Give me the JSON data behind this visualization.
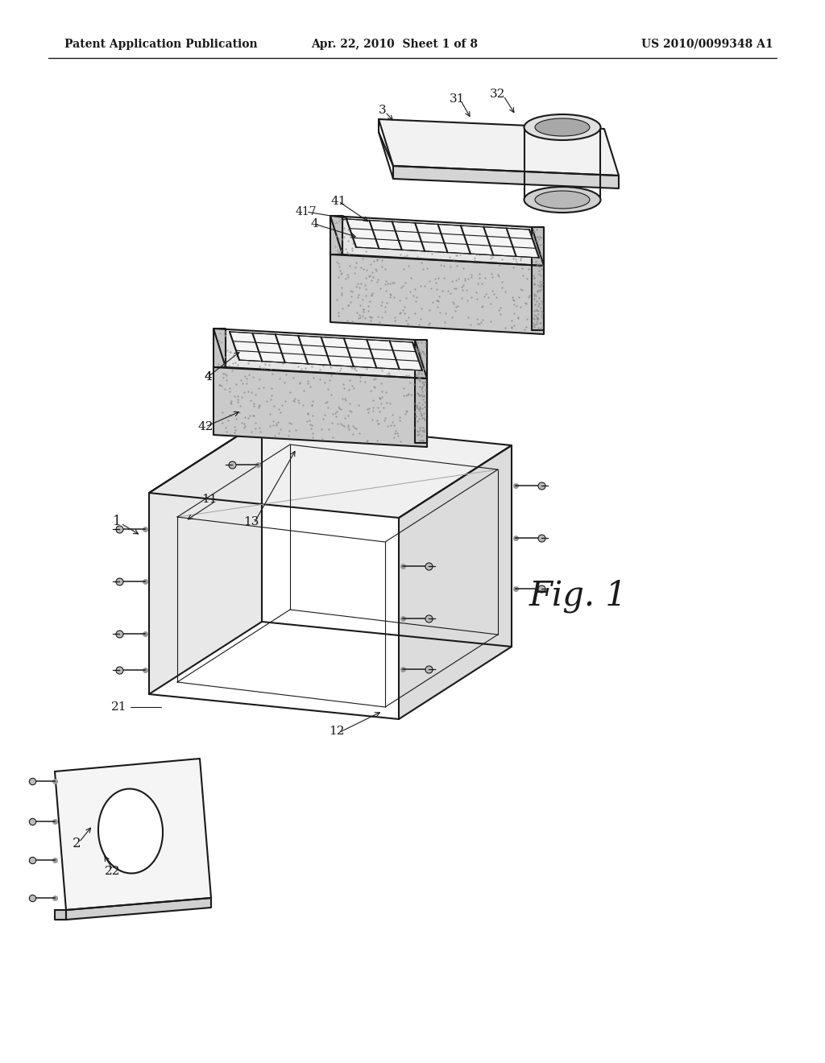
{
  "bg_color": "#ffffff",
  "line_color": "#1a1a1a",
  "header_left": "Patent Application Publication",
  "header_center": "Apr. 22, 2010  Sheet 1 of 8",
  "header_right": "US 2010/0099348 A1",
  "fig_label": "Fig. 1"
}
